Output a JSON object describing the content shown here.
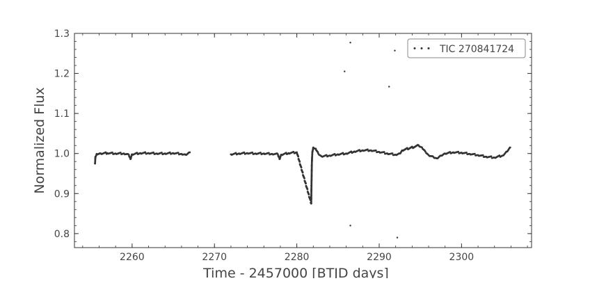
{
  "chart_data": {
    "type": "scatter",
    "title": "",
    "xlabel": "Time - 2457000 [BTJD days]",
    "ylabel": "Normalized Flux",
    "xlim": [
      2253.0,
      2308.5
    ],
    "ylim": [
      0.765,
      1.3
    ],
    "x_ticks": [
      2260,
      2270,
      2280,
      2290,
      2300
    ],
    "x_tick_labels": [
      "2260",
      "2270",
      "2280",
      "2290",
      "2300"
    ],
    "y_ticks": [
      0.8,
      0.9,
      1.0,
      1.1,
      1.2,
      1.3
    ],
    "y_tick_labels": [
      "0.8",
      "0.9",
      "1.0",
      "1.1",
      "1.2",
      "1.3"
    ],
    "grid": false,
    "legend": {
      "position": "top-right",
      "entries": [
        "TIC 270841724"
      ]
    },
    "colors": {
      "points": "#333333",
      "axes": "#333333",
      "text": "#444444"
    },
    "series": [
      {
        "name": "TIC 270841724",
        "points": [
          [
            2255.5,
            0.975
          ],
          [
            2255.55,
            0.992
          ],
          [
            2255.7,
            0.999
          ],
          [
            2256.2,
            1.0
          ],
          [
            2257.0,
            1.001
          ],
          [
            2258.0,
            1.0
          ],
          [
            2259.0,
            1.0
          ],
          [
            2259.6,
            0.997
          ],
          [
            2259.8,
            0.986
          ],
          [
            2260.0,
            0.998
          ],
          [
            2261.0,
            1.001
          ],
          [
            2262.0,
            1.001
          ],
          [
            2263.0,
            1.0
          ],
          [
            2264.0,
            1.0
          ],
          [
            2265.0,
            1.001
          ],
          [
            2266.0,
            0.999
          ],
          [
            2266.5,
            0.997
          ],
          [
            2267.0,
            1.003
          ],
          [
            2272.0,
            0.998
          ],
          [
            2273.0,
            1.0
          ],
          [
            2274.0,
            1.001
          ],
          [
            2275.0,
            1.0
          ],
          [
            2276.0,
            1.0
          ],
          [
            2277.0,
            0.999
          ],
          [
            2277.7,
            0.998
          ],
          [
            2277.9,
            0.986
          ],
          [
            2278.1,
            0.997
          ],
          [
            2279.0,
            1.001
          ],
          [
            2280.0,
            1.003
          ],
          [
            2281.75,
            0.875
          ],
          [
            2281.76,
            0.895
          ],
          [
            2281.78,
            0.92
          ],
          [
            2281.8,
            0.945
          ],
          [
            2281.82,
            0.97
          ],
          [
            2281.85,
            0.99
          ],
          [
            2281.9,
            1.005
          ],
          [
            2282.0,
            1.015
          ],
          [
            2282.3,
            1.012
          ],
          [
            2282.6,
            1.0
          ],
          [
            2283.0,
            0.993
          ],
          [
            2284.0,
            0.995
          ],
          [
            2285.0,
            0.998
          ],
          [
            2286.0,
            1.0
          ],
          [
            2287.0,
            1.005
          ],
          [
            2288.0,
            1.008
          ],
          [
            2289.0,
            1.008
          ],
          [
            2290.0,
            1.004
          ],
          [
            2291.0,
            1.0
          ],
          [
            2292.0,
            0.997
          ],
          [
            2292.5,
            1.0
          ],
          [
            2292.8,
            1.008
          ],
          [
            2294.8,
            1.02
          ],
          [
            2295.2,
            1.015
          ],
          [
            2295.6,
            1.005
          ],
          [
            2296.0,
            0.996
          ],
          [
            2296.6,
            0.991
          ],
          [
            2297.0,
            0.988
          ],
          [
            2297.5,
            0.995
          ],
          [
            2298.0,
            1.0
          ],
          [
            2299.0,
            1.003
          ],
          [
            2300.0,
            1.002
          ],
          [
            2301.0,
            0.999
          ],
          [
            2302.0,
            0.996
          ],
          [
            2303.0,
            0.992
          ],
          [
            2304.0,
            0.99
          ],
          [
            2305.0,
            0.995
          ],
          [
            2305.5,
            1.005
          ],
          [
            2305.9,
            1.015
          ],
          [
            2285.8,
            1.205
          ],
          [
            2286.5,
            1.277
          ],
          [
            2291.9,
            1.257
          ],
          [
            2291.2,
            1.167
          ],
          [
            2286.5,
            0.82
          ],
          [
            2292.2,
            0.79
          ]
        ]
      }
    ]
  }
}
